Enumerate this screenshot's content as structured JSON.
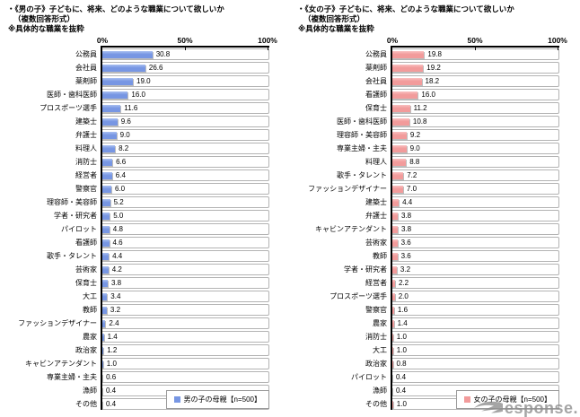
{
  "chart_data": [
    {
      "type": "bar",
      "orientation": "horizontal",
      "title_line1": "・《男の子》子どもに、将来、どのような職業について欲しいか",
      "title_line2": "（複数回答形式）",
      "title_line3": "※具体的な職業を抜粋",
      "categories": [
        "公務員",
        "会社員",
        "薬剤師",
        "医師・歯科医師",
        "プロスポーツ選手",
        "建築士",
        "弁護士",
        "料理人",
        "消防士",
        "経営者",
        "警察官",
        "理容師・美容師",
        "学者・研究者",
        "パイロット",
        "看護師",
        "歌手・タレント",
        "芸術家",
        "保育士",
        "大工",
        "教師",
        "ファッションデザイナー",
        "農家",
        "政治家",
        "キャビンアテンダント",
        "専業主婦・主夫",
        "漁師",
        "その他"
      ],
      "values": [
        30.8,
        26.6,
        19.0,
        16.0,
        11.6,
        9.6,
        9.0,
        8.2,
        6.6,
        6.4,
        6.0,
        5.2,
        5.0,
        4.8,
        4.6,
        4.4,
        4.2,
        3.8,
        3.4,
        3.2,
        2.4,
        1.4,
        1.2,
        1.0,
        0.6,
        0.4,
        0.4
      ],
      "xlim": [
        0,
        100
      ],
      "x_ticks": [
        "0%",
        "50%",
        "100%"
      ],
      "grid": "category-boxes",
      "legend": "男の子の母親【n=500】",
      "legend_position": "bottom-right",
      "bar_color": "#7796E3",
      "bar_color_light": "#A9BFF1"
    },
    {
      "type": "bar",
      "orientation": "horizontal",
      "title_line1": "・《女の子》子どもに、将来、どのような職業について欲しいか",
      "title_line2": "（複数回答形式）",
      "title_line3": "※具体的な職業を抜粋",
      "categories": [
        "公務員",
        "薬剤師",
        "会社員",
        "看護師",
        "保育士",
        "医師・歯科医師",
        "理容師・美容師",
        "専業主婦・主夫",
        "料理人",
        "歌手・タレント",
        "ファッションデザイナー",
        "建築士",
        "弁護士",
        "キャビンアテンダント",
        "芸術家",
        "教師",
        "学者・研究者",
        "経営者",
        "プロスポーツ選手",
        "警察官",
        "農家",
        "消防士",
        "大工",
        "政治家",
        "パイロット",
        "漁師",
        "その他"
      ],
      "values": [
        19.8,
        19.2,
        18.2,
        16.0,
        11.2,
        10.8,
        9.2,
        9.0,
        8.8,
        7.2,
        7.0,
        4.4,
        3.8,
        3.8,
        3.6,
        3.6,
        3.2,
        2.2,
        2.0,
        1.6,
        1.4,
        1.0,
        1.0,
        0.8,
        0.4,
        0.4,
        1.0
      ],
      "xlim": [
        0,
        100
      ],
      "x_ticks": [
        "0%",
        "50%",
        "100%"
      ],
      "grid": "category-boxes",
      "legend": "女の子の母親【n=500】",
      "legend_position": "bottom-right",
      "bar_color": "#F29B9B",
      "bar_color_light": "#F9C0C0"
    }
  ],
  "watermark": {
    "wordmark": "Response.",
    "text_after_swoosh": "esponse.",
    "color": "#8f8f8f"
  }
}
